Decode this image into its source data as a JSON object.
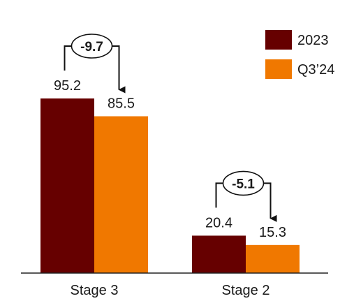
{
  "chart_data": {
    "type": "bar",
    "title": "",
    "xlabel": "",
    "ylabel": "",
    "categories": [
      "Stage 3",
      "Stage 2"
    ],
    "series": [
      {
        "name": "2023",
        "values": [
          95.2,
          20.4
        ],
        "color": "#660000"
      },
      {
        "name": "Q3’24",
        "values": [
          85.5,
          15.3
        ],
        "color": "#F07800"
      }
    ],
    "value_labels": [
      [
        "95.2",
        "20.4"
      ],
      [
        "85.5",
        "15.3"
      ]
    ],
    "change_labels": [
      "-9.7",
      "-5.1"
    ],
    "ylim": [
      0,
      100
    ],
    "grid": false,
    "legend": "top-right"
  }
}
